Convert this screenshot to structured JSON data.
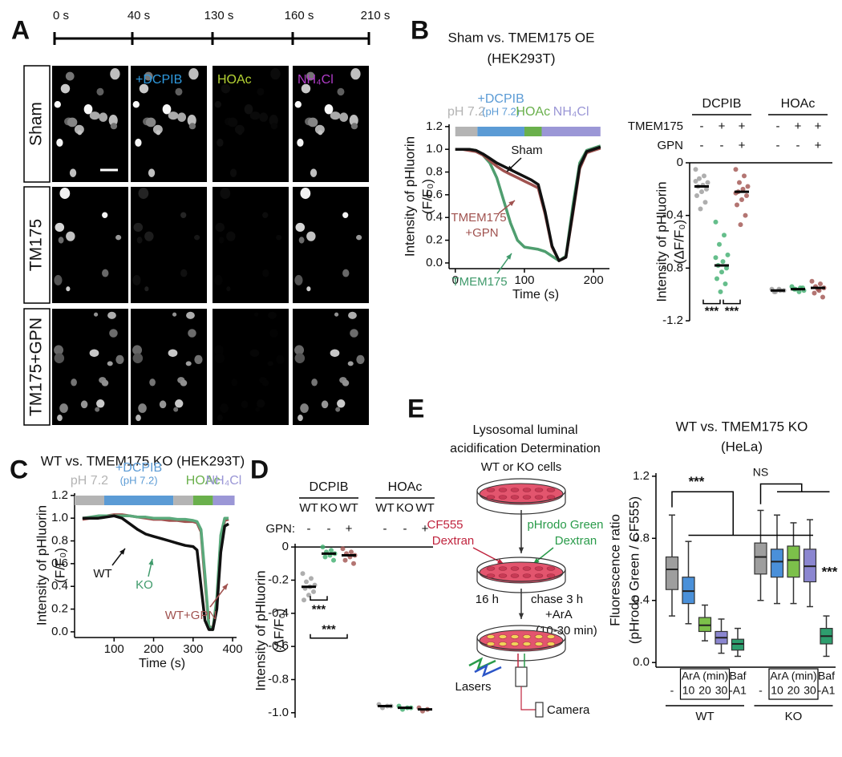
{
  "panel_labels": [
    "A",
    "B",
    "C",
    "D",
    "E"
  ],
  "panel_a": {
    "timeline": [
      "0 s",
      "40 s",
      "130 s",
      "160 s",
      "210 s"
    ],
    "columns": [
      {
        "label": "+DCPIB",
        "color": "#2f9be0"
      },
      {
        "label": "HOAc",
        "color": "#b5d333"
      },
      {
        "label": "NH₄Cl",
        "color": "#b03cc8"
      }
    ],
    "rows": [
      "Sham",
      "TM175",
      "TM175+GPN"
    ]
  },
  "diagram_e": {
    "title": [
      "Lysosomal luminal",
      "acidification Determination"
    ],
    "cells": "WT or KO cells",
    "dye_red": [
      "CF555",
      "Dextran"
    ],
    "dye_green": [
      "pHrodo Green",
      "Dextran"
    ],
    "step": [
      "16 h",
      "chase 3 h"
    ],
    "treatment": [
      "+ArA",
      "(10-30 min)"
    ],
    "lasers": "Lasers",
    "camera": "Camera"
  },
  "chart_data": [
    {
      "type": "line",
      "title": "Sham vs. TMEM175 OE",
      "subtitle": "(HEK293T)",
      "ylabel": [
        "Intensity of pHluorin",
        "(F/F₀)"
      ],
      "xlabel": "Time (s)",
      "xlim": [
        -9,
        223
      ],
      "xticks": [
        0,
        100,
        200
      ],
      "ylim": [
        -0.05,
        1.22
      ],
      "yticks": [
        {
          "value": 0,
          "label": "0.0"
        },
        0.2,
        0.4,
        0.6,
        0.8,
        {
          "value": 1,
          "label": "1.0"
        },
        1.2
      ],
      "phases": [
        {
          "label": "pH 7.2",
          "start": 0,
          "end": 32,
          "color": "#b4b4b4"
        },
        {
          "label": "+DCPIB",
          "sublabel": "(pH 7.2)",
          "start": 32,
          "end": 100,
          "color": "#5b9bd5"
        },
        {
          "label": "HOAc",
          "start": 100,
          "end": 125,
          "color": "#6ab04c"
        },
        {
          "label": "NH₄Cl",
          "start": 125,
          "end": 210,
          "color": "#9b97d6"
        }
      ],
      "x": [
        0,
        10,
        20,
        30,
        40,
        50,
        60,
        70,
        80,
        90,
        100,
        110,
        120,
        130,
        140,
        150,
        160,
        170,
        180,
        190,
        200,
        210
      ],
      "series": [
        {
          "color": "#4f9e6f",
          "values": [
            1.0,
            1.0,
            1.0,
            0.99,
            0.95,
            0.88,
            0.75,
            0.55,
            0.35,
            0.2,
            0.14,
            0.13,
            0.12,
            0.1,
            0.06,
            0.02,
            0.06,
            0.5,
            0.88,
            0.99,
            1.01,
            1.03
          ]
        },
        {
          "color": "#a0524f",
          "values": [
            1.0,
            1.0,
            0.99,
            0.98,
            0.95,
            0.9,
            0.85,
            0.81,
            0.78,
            0.75,
            0.72,
            0.69,
            0.66,
            0.43,
            0.14,
            0.02,
            0.05,
            0.43,
            0.83,
            0.97,
            0.99,
            1.01
          ]
        },
        {
          "color": "#111111",
          "values": [
            1.0,
            1.0,
            1.0,
            0.99,
            0.96,
            0.92,
            0.88,
            0.85,
            0.82,
            0.79,
            0.76,
            0.73,
            0.69,
            0.45,
            0.15,
            0.02,
            0.05,
            0.45,
            0.85,
            0.98,
            1.0,
            1.02
          ]
        }
      ],
      "annotations": [
        {
          "text": "Sham",
          "color": "#111111"
        },
        {
          "text": "TMEM175",
          "color": "#a0524f"
        },
        {
          "text": "+GPN",
          "color": "#a0524f"
        },
        {
          "text": "TMEM175",
          "color": "#3f9a6b"
        }
      ]
    },
    {
      "type": "strip",
      "headers": [
        "DCPIB",
        "HOAc"
      ],
      "row_labels": [
        "TMEM175",
        "GPN"
      ],
      "rows": [
        [
          "-",
          "+",
          "+",
          "-",
          "+",
          "+"
        ],
        [
          "-",
          "-",
          "+",
          "-",
          "-",
          "+"
        ]
      ],
      "ylabel": [
        "Intensity of pHluorin",
        "(ΔF/F₀)"
      ],
      "ylim": [
        -1.2,
        0
      ],
      "yticks": [
        0,
        -0.4,
        -0.8,
        -1.2
      ],
      "colors": [
        "#9a9a9a",
        "#3fae6e",
        "#a0524f",
        "#9a9a9a",
        "#3fae6e",
        "#a0524f"
      ],
      "values": [
        -0.18,
        -0.78,
        -0.22,
        -0.97,
        -0.96,
        -0.95
      ],
      "points": [
        [
          -0.05,
          -0.1,
          -0.12,
          -0.15,
          -0.17,
          -0.18,
          -0.2,
          -0.22,
          -0.25,
          -0.3,
          -0.35,
          -0.14
        ],
        [
          -0.45,
          -0.55,
          -0.62,
          -0.7,
          -0.75,
          -0.78,
          -0.8,
          -0.83,
          -0.88,
          -0.92,
          -0.98,
          -0.72
        ],
        [
          -0.05,
          -0.1,
          -0.15,
          -0.18,
          -0.2,
          -0.22,
          -0.25,
          -0.28,
          -0.32,
          -0.4,
          -0.47,
          -0.23
        ],
        [
          -0.96,
          -0.97,
          -0.98,
          -0.97,
          -0.96,
          -0.98
        ],
        [
          -0.94,
          -0.95,
          -0.96,
          -0.97,
          -0.98,
          -0.96,
          -0.95
        ],
        [
          -0.9,
          -0.92,
          -0.94,
          -0.95,
          -0.97,
          -0.99,
          -1.02,
          -0.96
        ]
      ],
      "significance": [
        "***",
        "***"
      ]
    },
    {
      "type": "line",
      "title": "WT vs. TMEM175 KO (HEK293T)",
      "ylabel": [
        "Intensity of pHluorin",
        "(F/F₀)"
      ],
      "xlabel": "Time (s)",
      "xlim": [
        0,
        410
      ],
      "xticks": [
        100,
        200,
        300,
        400
      ],
      "ylim": [
        -0.05,
        1.22
      ],
      "yticks": [
        {
          "value": 0,
          "label": "0.0"
        },
        0.2,
        0.4,
        0.6,
        0.8,
        {
          "value": 1,
          "label": "1.0"
        },
        1.2
      ],
      "phases": [
        {
          "label": "pH 7.2",
          "start": 0,
          "end": 75,
          "color": "#b4b4b4"
        },
        {
          "label": "+DCPIB",
          "sublabel": "(pH 7.2)",
          "start": 75,
          "end": 250,
          "color": "#5b9bd5"
        },
        {
          "start": 250,
          "end": 300,
          "color": "#b4b4b4"
        },
        {
          "label": "HOAc",
          "start": 300,
          "end": 350,
          "color": "#6ab04c"
        },
        {
          "label": "NH₄Cl",
          "start": 350,
          "end": 405,
          "color": "#9b97d6"
        }
      ],
      "x": [
        20,
        40,
        60,
        80,
        100,
        120,
        140,
        160,
        180,
        200,
        220,
        240,
        260,
        280,
        300,
        310,
        320,
        330,
        340,
        350,
        360,
        370,
        380,
        390
      ],
      "series": [
        {
          "color": "#a0524f",
          "values": [
            0.99,
            1.0,
            1.01,
            1.02,
            1.03,
            1.03,
            1.02,
            1.01,
            1.0,
            0.99,
            0.99,
            0.98,
            0.98,
            0.97,
            0.97,
            0.96,
            0.88,
            0.45,
            0.05,
            0.03,
            0.25,
            0.8,
            0.98,
            0.99
          ]
        },
        {
          "color": "#5aa97b",
          "values": [
            1.0,
            1.01,
            1.02,
            1.02,
            1.02,
            1.02,
            1.02,
            1.01,
            1.01,
            1.0,
            1.0,
            1.0,
            0.99,
            0.99,
            0.98,
            0.97,
            0.9,
            0.5,
            0.05,
            0.02,
            0.3,
            0.85,
            1.0,
            1.0
          ]
        },
        {
          "color": "#111111",
          "values": [
            1.0,
            1.0,
            1.0,
            1.01,
            1.02,
            1.0,
            0.95,
            0.9,
            0.86,
            0.84,
            0.82,
            0.8,
            0.78,
            0.76,
            0.75,
            0.72,
            0.4,
            0.1,
            0.02,
            0.02,
            0.2,
            0.7,
            0.93,
            0.95
          ]
        }
      ],
      "annotations": [
        {
          "text": "WT",
          "color": "#111111"
        },
        {
          "text": "KO",
          "color": "#3f9a6b"
        },
        {
          "text": "WT+GPN",
          "color": "#a0524f"
        }
      ]
    },
    {
      "type": "strip",
      "headers": [
        "DCPIB",
        "HOAc"
      ],
      "categories": [
        "WT",
        "KO",
        "WT",
        "WT",
        "KO",
        "WT"
      ],
      "row_labels": [
        "GPN:"
      ],
      "rows": [
        [
          "-",
          "-",
          "+",
          "-",
          "-",
          "+"
        ]
      ],
      "ylabel": [
        "Intensity of pHluorin",
        "(ΔF/F₀)"
      ],
      "ylim": [
        -1.03,
        0.02
      ],
      "yticks": [
        0,
        -0.2,
        -0.4,
        -0.6,
        -0.8,
        {
          "value": -1,
          "label": "-1.0"
        }
      ],
      "colors": [
        "#9a9a9a",
        "#3fae6e",
        "#a0524f",
        "#9a9a9a",
        "#3fae6e",
        "#a0524f"
      ],
      "values": [
        -0.24,
        -0.04,
        -0.05,
        -0.96,
        -0.97,
        -0.98
      ],
      "points": [
        [
          -0.16,
          -0.19,
          -0.21,
          -0.23,
          -0.24,
          -0.25,
          -0.27,
          -0.29,
          -0.32
        ],
        [
          0,
          -0.02,
          -0.03,
          -0.04,
          -0.05,
          -0.06,
          -0.08
        ],
        [
          -0.01,
          -0.03,
          -0.04,
          -0.05,
          -0.06,
          -0.08,
          -0.1
        ],
        [
          -0.95,
          -0.96,
          -0.97,
          -0.96
        ],
        [
          -0.96,
          -0.97,
          -0.98,
          -0.97
        ],
        [
          -0.97,
          -0.98,
          -0.99
        ]
      ],
      "significance": [
        "***",
        "***"
      ]
    },
    {
      "type": "box",
      "title": "WT vs. TMEM175 KO",
      "subtitle": "(HeLa)",
      "ylabel": [
        "Fluorescence ratio",
        "(pHrodo Green / CF555)"
      ],
      "ylim": [
        -0.03,
        1.22
      ],
      "yticks": [
        {
          "value": 0,
          "label": "0.0"
        },
        0.4,
        0.8,
        1.2
      ],
      "categories": [
        "-",
        "10",
        "20",
        "30",
        [
          "Baf",
          "-A1"
        ],
        "-",
        "10",
        "20",
        "30",
        [
          "Baf",
          "-A1"
        ]
      ],
      "subgroup_label": "ArA (min)",
      "group_labels": [
        "WT",
        "KO"
      ],
      "colors": [
        "#9e9e9e",
        "#4a90d9",
        "#7cc04a",
        "#8b86d0",
        "#2e9e6e",
        "#9e9e9e",
        "#4a90d9",
        "#7cc04a",
        "#8b86d0",
        "#2e9e6e"
      ],
      "boxes": [
        {
          "low": 0.3,
          "q1": 0.47,
          "median": 0.6,
          "q3": 0.68,
          "high": 0.95
        },
        {
          "low": 0.25,
          "q1": 0.38,
          "median": 0.46,
          "q3": 0.55,
          "high": 0.78
        },
        {
          "low": 0.14,
          "q1": 0.2,
          "median": 0.24,
          "q3": 0.29,
          "high": 0.37
        },
        {
          "low": 0.06,
          "q1": 0.12,
          "median": 0.16,
          "q3": 0.2,
          "high": 0.28
        },
        {
          "low": 0.04,
          "q1": 0.08,
          "median": 0.12,
          "q3": 0.15,
          "high": 0.22
        },
        {
          "low": 0.4,
          "q1": 0.57,
          "median": 0.68,
          "q3": 0.77,
          "high": 0.98
        },
        {
          "low": 0.38,
          "q1": 0.55,
          "median": 0.65,
          "q3": 0.73,
          "high": 0.95
        },
        {
          "low": 0.38,
          "q1": 0.55,
          "median": 0.66,
          "q3": 0.75,
          "high": 0.9
        },
        {
          "low": 0.36,
          "q1": 0.52,
          "median": 0.62,
          "q3": 0.73,
          "high": 0.92
        },
        {
          "low": 0.04,
          "q1": 0.12,
          "median": 0.17,
          "q3": 0.22,
          "high": 0.3
        }
      ],
      "significance": [
        "***",
        "NS",
        "***"
      ]
    }
  ]
}
